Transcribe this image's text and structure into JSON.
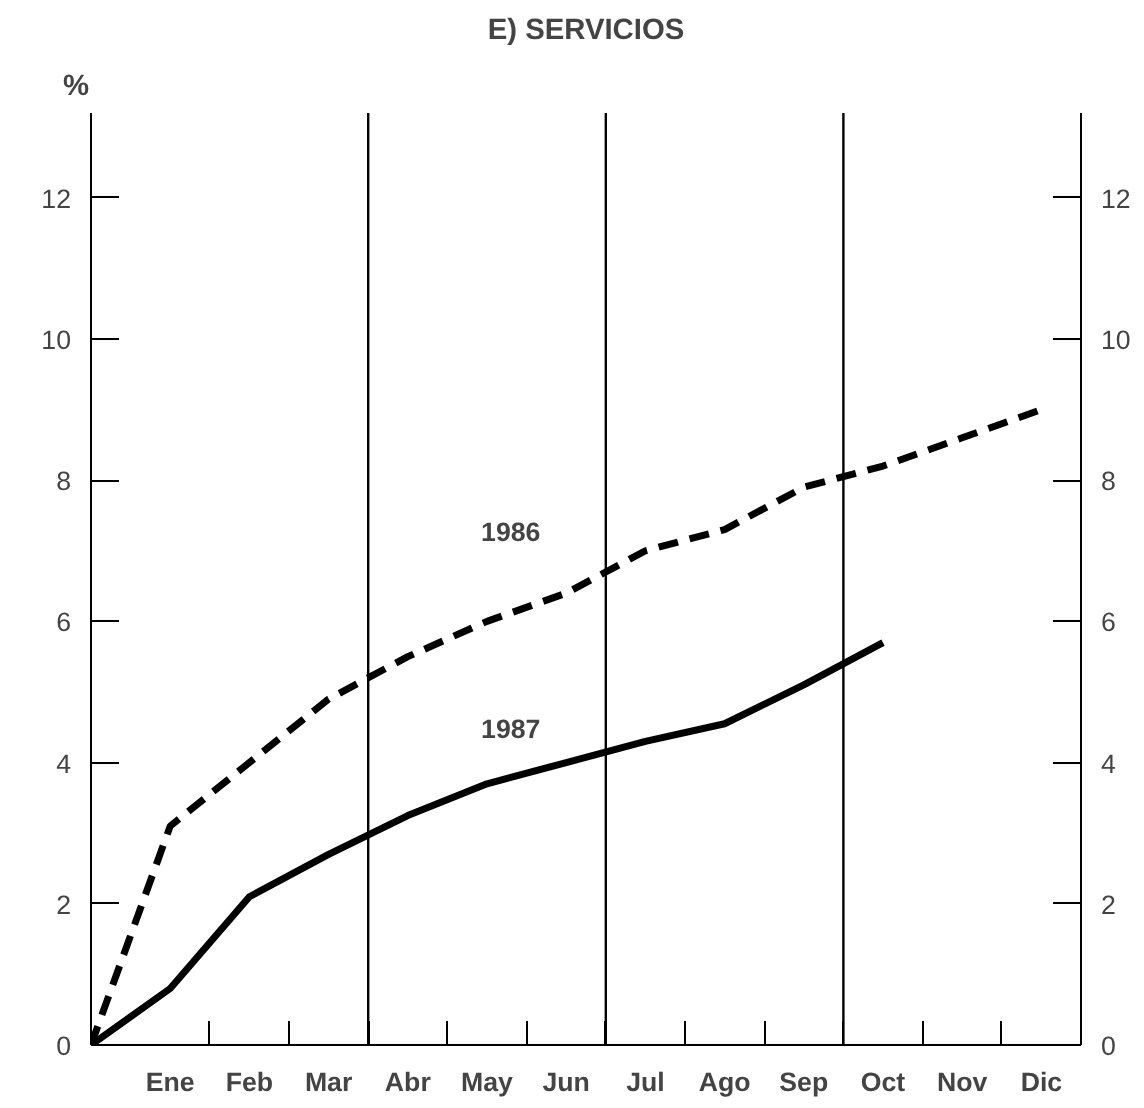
{
  "chart_data": {
    "type": "line",
    "title": "E) SERVICIOS",
    "ylabel": "%",
    "categories": [
      null,
      "Ene",
      "Feb",
      "Mar",
      "Abr",
      "May",
      "Jun",
      "Jul",
      "Ago",
      "Sep",
      "Oct",
      "Nov",
      "Dic"
    ],
    "ylim": [
      0,
      13.2
    ],
    "yticks": [
      0,
      2,
      4,
      6,
      8,
      10,
      12
    ],
    "y2lim": [
      0,
      13.2
    ],
    "y2ticks": [
      0,
      2,
      4,
      6,
      8,
      10,
      12
    ],
    "series": [
      {
        "color": "#000000",
        "line_style": "dashed",
        "values": [
          0,
          3.1,
          4.0,
          4.9,
          5.5,
          6.0,
          6.4,
          7.0,
          7.3,
          7.9,
          8.2,
          8.6,
          9.0
        ]
      },
      {
        "color": "#000000",
        "line_style": "solid",
        "values": [
          0,
          0.8,
          2.1,
          2.7,
          3.25,
          3.7,
          4.0,
          4.3,
          4.55,
          5.1,
          5.7,
          null,
          null
        ]
      }
    ],
    "annotations": [
      "1986",
      "1987"
    ],
    "grid": false,
    "marker": "none"
  }
}
